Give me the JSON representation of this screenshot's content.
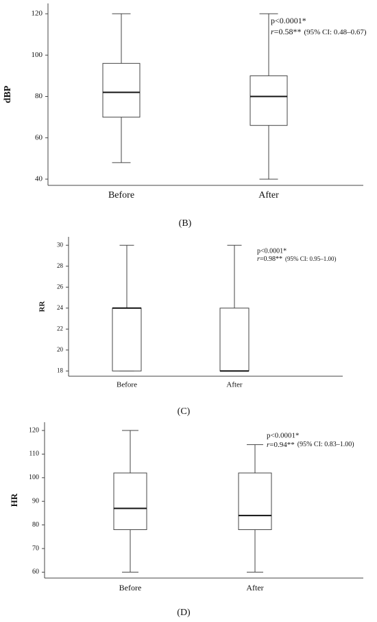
{
  "chart_data": [
    {
      "type": "box",
      "caption": "(B)",
      "y_label": "dBP",
      "categories": [
        "Before",
        "After"
      ],
      "boxes": [
        {
          "min": 48,
          "q1": 70,
          "median": 82,
          "q3": 96,
          "max": 120
        },
        {
          "min": 40,
          "q1": 66,
          "median": 80,
          "q3": 90,
          "max": 120
        }
      ],
      "ylim": [
        37,
        125
      ],
      "yticks": [
        40,
        60,
        80,
        100,
        120
      ],
      "color": "#ffffff",
      "annotation": {
        "p": "p<0.0001*",
        "r_symbol": "r",
        "r": "=0.58**",
        "ci": "(95% CI: 0.48–0.67)"
      }
    },
    {
      "type": "box",
      "caption": "(C)",
      "y_label": "RR",
      "categories": [
        "Before",
        "After"
      ],
      "boxes": [
        {
          "min": 18,
          "q1": 18,
          "median": 24,
          "q3": 24,
          "max": 30
        },
        {
          "min": 18,
          "q1": 18,
          "median": 18,
          "q3": 24,
          "max": 30
        }
      ],
      "ylim": [
        17.5,
        30.8
      ],
      "yticks": [
        18,
        20,
        22,
        24,
        26,
        28,
        30
      ],
      "color": "#ffffff",
      "annotation": {
        "p": "p<0.0001*",
        "r_symbol": "r",
        "r": "=0.98**",
        "ci": "(95% CI: 0.95–1.00)"
      }
    },
    {
      "type": "box",
      "caption": "(D)",
      "y_label": "HR",
      "categories": [
        "Before",
        "After"
      ],
      "boxes": [
        {
          "min": 60,
          "q1": 78,
          "median": 87,
          "q3": 102,
          "max": 120
        },
        {
          "min": 60,
          "q1": 78,
          "median": 84,
          "q3": 102,
          "max": 114
        }
      ],
      "ylim": [
        57.5,
        123.5
      ],
      "yticks": [
        60,
        70,
        80,
        90,
        100,
        110,
        120
      ],
      "color": "#ffffff",
      "annotation": {
        "p": "p<0.0001*",
        "r_symbol": "r",
        "r": "=0.94**",
        "ci": "(95% CI: 0.83–1.00)"
      }
    }
  ]
}
